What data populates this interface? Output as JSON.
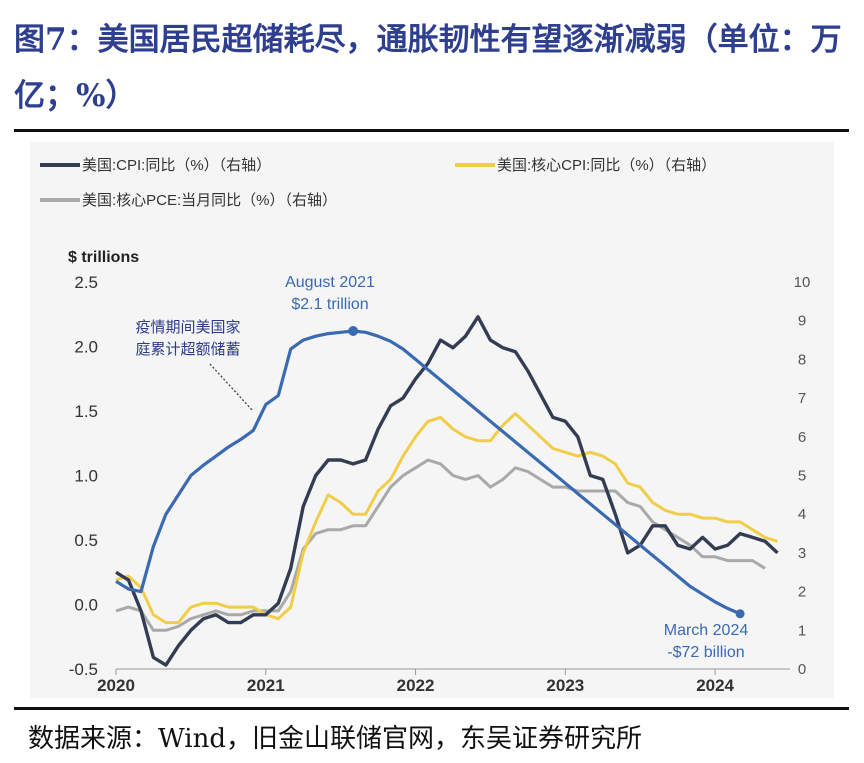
{
  "header": {
    "title": "图7：美国居民超储耗尽，通胀韧性有望逐渐减弱（单位：万亿；%）"
  },
  "source": "数据来源：Wind，旧金山联储官网，东吴证券研究所",
  "colors": {
    "savings": "#3a6ab2",
    "cpi": "#333c52",
    "core_cpi": "#f2cd48",
    "core_pce": "#a9a9a9"
  },
  "chart_data": {
    "type": "line",
    "legend": [
      "美国:CPI:同比（%）（右轴）",
      "美国:核心CPI:同比（%）（右轴）",
      "美国:核心PCE:当月同比（%）（右轴）"
    ],
    "legend_placement": "top",
    "left_axis": {
      "title": "$ trillions",
      "range": [
        -0.5,
        2.5
      ],
      "ticks": [
        "2.5",
        "2.0",
        "1.5",
        "1.0",
        "0.5",
        "0.0",
        "-0.5"
      ]
    },
    "right_axis": {
      "range": [
        0,
        10
      ],
      "ticks": [
        "10",
        "9",
        "8",
        "7",
        "6",
        "5",
        "4",
        "3",
        "2",
        "1",
        "0"
      ]
    },
    "x_axis": {
      "range": [
        "2020-01",
        "2024-07"
      ],
      "ticks": [
        "2020",
        "2021",
        "2022",
        "2023",
        "2024"
      ]
    },
    "annotations": {
      "peak": [
        "August 2021",
        "$2.1 trillion"
      ],
      "end": [
        "March 2024",
        "-$72 billion"
      ],
      "note": [
        "疫情期间美国家",
        "庭累计超额储蓄"
      ]
    },
    "series": [
      {
        "key": "savings",
        "axis": "left",
        "x": [
          "2020-01",
          "2020-02",
          "2020-03",
          "2020-04",
          "2020-05",
          "2020-06",
          "2020-07",
          "2020-08",
          "2020-09",
          "2020-10",
          "2020-11",
          "2020-12",
          "2021-01",
          "2021-02",
          "2021-03",
          "2021-04",
          "2021-05",
          "2021-06",
          "2021-07",
          "2021-08",
          "2021-09",
          "2021-10",
          "2021-11",
          "2021-12",
          "2022-01",
          "2022-02",
          "2022-03",
          "2022-04",
          "2022-05",
          "2022-06",
          "2022-07",
          "2022-08",
          "2022-09",
          "2022-10",
          "2022-11",
          "2022-12",
          "2023-01",
          "2023-02",
          "2023-03",
          "2023-04",
          "2023-05",
          "2023-06",
          "2023-07",
          "2023-08",
          "2023-09",
          "2023-10",
          "2023-11",
          "2023-12",
          "2024-01",
          "2024-02",
          "2024-03"
        ],
        "values": [
          0.18,
          0.12,
          0.1,
          0.45,
          0.7,
          0.85,
          1.0,
          1.08,
          1.15,
          1.22,
          1.28,
          1.35,
          1.55,
          1.62,
          1.98,
          2.05,
          2.08,
          2.1,
          2.11,
          2.12,
          2.11,
          2.08,
          2.04,
          1.98,
          1.9,
          1.82,
          1.74,
          1.66,
          1.58,
          1.5,
          1.42,
          1.34,
          1.26,
          1.18,
          1.1,
          1.02,
          0.94,
          0.86,
          0.78,
          0.7,
          0.62,
          0.54,
          0.46,
          0.38,
          0.3,
          0.22,
          0.14,
          0.08,
          0.02,
          -0.03,
          -0.072
        ]
      },
      {
        "key": "cpi",
        "name": "美国:CPI:同比（%）（右轴）",
        "axis": "right",
        "x": [
          "2020-01",
          "2020-02",
          "2020-03",
          "2020-04",
          "2020-05",
          "2020-06",
          "2020-07",
          "2020-08",
          "2020-09",
          "2020-10",
          "2020-11",
          "2020-12",
          "2021-01",
          "2021-02",
          "2021-03",
          "2021-04",
          "2021-05",
          "2021-06",
          "2021-07",
          "2021-08",
          "2021-09",
          "2021-10",
          "2021-11",
          "2021-12",
          "2022-01",
          "2022-02",
          "2022-03",
          "2022-04",
          "2022-05",
          "2022-06",
          "2022-07",
          "2022-08",
          "2022-09",
          "2022-10",
          "2022-11",
          "2022-12",
          "2023-01",
          "2023-02",
          "2023-03",
          "2023-04",
          "2023-05",
          "2023-06",
          "2023-07",
          "2023-08",
          "2023-09",
          "2023-10",
          "2023-11",
          "2023-12",
          "2024-01",
          "2024-02",
          "2024-03",
          "2024-04",
          "2024-05",
          "2024-06"
        ],
        "values": [
          2.5,
          2.3,
          1.5,
          0.3,
          0.1,
          0.6,
          1.0,
          1.3,
          1.4,
          1.2,
          1.2,
          1.4,
          1.4,
          1.7,
          2.6,
          4.2,
          5.0,
          5.4,
          5.4,
          5.3,
          5.4,
          6.2,
          6.8,
          7.0,
          7.5,
          7.9,
          8.5,
          8.3,
          8.6,
          9.1,
          8.5,
          8.3,
          8.2,
          7.7,
          7.1,
          6.5,
          6.4,
          6.0,
          5.0,
          4.9,
          4.0,
          3.0,
          3.2,
          3.7,
          3.7,
          3.2,
          3.1,
          3.4,
          3.1,
          3.2,
          3.5,
          3.4,
          3.3,
          3.0
        ]
      },
      {
        "key": "core_cpi",
        "name": "美国:核心CPI:同比（%）（右轴）",
        "axis": "right",
        "x": [
          "2020-01",
          "2020-02",
          "2020-03",
          "2020-04",
          "2020-05",
          "2020-06",
          "2020-07",
          "2020-08",
          "2020-09",
          "2020-10",
          "2020-11",
          "2020-12",
          "2021-01",
          "2021-02",
          "2021-03",
          "2021-04",
          "2021-05",
          "2021-06",
          "2021-07",
          "2021-08",
          "2021-09",
          "2021-10",
          "2021-11",
          "2021-12",
          "2022-01",
          "2022-02",
          "2022-03",
          "2022-04",
          "2022-05",
          "2022-06",
          "2022-07",
          "2022-08",
          "2022-09",
          "2022-10",
          "2022-11",
          "2022-12",
          "2023-01",
          "2023-02",
          "2023-03",
          "2023-04",
          "2023-05",
          "2023-06",
          "2023-07",
          "2023-08",
          "2023-09",
          "2023-10",
          "2023-11",
          "2023-12",
          "2024-01",
          "2024-02",
          "2024-03",
          "2024-04",
          "2024-05",
          "2024-06"
        ],
        "values": [
          2.3,
          2.4,
          2.1,
          1.4,
          1.2,
          1.2,
          1.6,
          1.7,
          1.7,
          1.6,
          1.6,
          1.6,
          1.4,
          1.3,
          1.6,
          3.0,
          3.8,
          4.5,
          4.3,
          4.0,
          4.0,
          4.6,
          4.9,
          5.5,
          6.0,
          6.4,
          6.5,
          6.2,
          6.0,
          5.9,
          5.9,
          6.3,
          6.6,
          6.3,
          6.0,
          5.7,
          5.6,
          5.5,
          5.6,
          5.5,
          5.3,
          4.8,
          4.7,
          4.3,
          4.1,
          4.0,
          4.0,
          3.9,
          3.9,
          3.8,
          3.8,
          3.6,
          3.4,
          3.3
        ]
      },
      {
        "key": "core_pce",
        "name": "美国:核心PCE:当月同比（%）（右轴）",
        "axis": "right",
        "x": [
          "2020-01",
          "2020-02",
          "2020-03",
          "2020-04",
          "2020-05",
          "2020-06",
          "2020-07",
          "2020-08",
          "2020-09",
          "2020-10",
          "2020-11",
          "2020-12",
          "2021-01",
          "2021-02",
          "2021-03",
          "2021-04",
          "2021-05",
          "2021-06",
          "2021-07",
          "2021-08",
          "2021-09",
          "2021-10",
          "2021-11",
          "2021-12",
          "2022-01",
          "2022-02",
          "2022-03",
          "2022-04",
          "2022-05",
          "2022-06",
          "2022-07",
          "2022-08",
          "2022-09",
          "2022-10",
          "2022-11",
          "2022-12",
          "2023-01",
          "2023-02",
          "2023-03",
          "2023-04",
          "2023-05",
          "2023-06",
          "2023-07",
          "2023-08",
          "2023-09",
          "2023-10",
          "2023-11",
          "2023-12",
          "2024-01",
          "2024-02",
          "2024-03",
          "2024-04",
          "2024-05"
        ],
        "values": [
          1.5,
          1.6,
          1.5,
          1.0,
          1.0,
          1.1,
          1.3,
          1.4,
          1.5,
          1.4,
          1.4,
          1.5,
          1.5,
          1.5,
          2.0,
          3.1,
          3.5,
          3.6,
          3.6,
          3.7,
          3.7,
          4.2,
          4.7,
          5.0,
          5.2,
          5.4,
          5.3,
          5.0,
          4.9,
          5.0,
          4.7,
          4.9,
          5.2,
          5.1,
          4.9,
          4.7,
          4.7,
          4.6,
          4.6,
          4.6,
          4.6,
          4.3,
          4.2,
          3.8,
          3.6,
          3.4,
          3.2,
          2.9,
          2.9,
          2.8,
          2.8,
          2.8,
          2.6
        ]
      }
    ]
  }
}
